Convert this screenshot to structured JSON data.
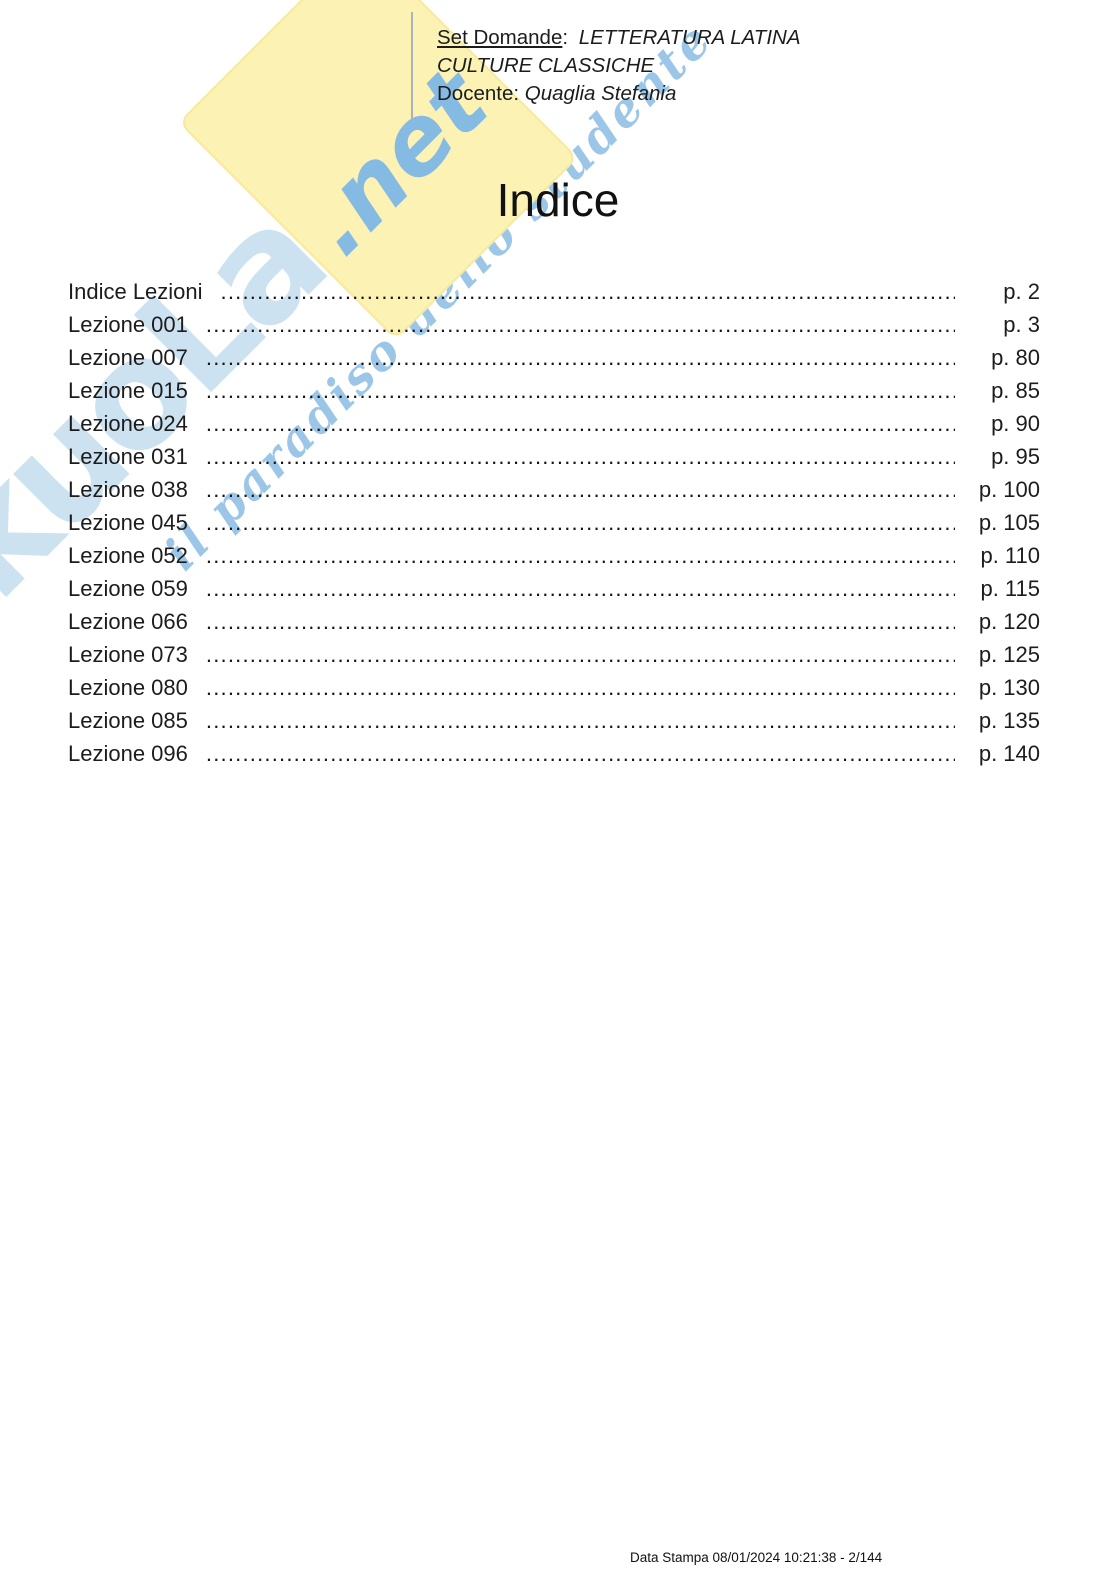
{
  "header": {
    "set_domande_label": "Set Domande",
    "separator": ":",
    "course_line1": "LETTERATURA LATINA",
    "course_line2": "CULTURE CLASSICHE",
    "docente_label": "Docente:",
    "docente_name": "Quaglia Stefania"
  },
  "title": "Indice",
  "toc": {
    "leader_char": ".",
    "entries": [
      {
        "label": "Indice Lezioni",
        "page": "p. 2"
      },
      {
        "label": "Lezione 001",
        "page": "p. 3"
      },
      {
        "label": "Lezione 007",
        "page": "p. 80"
      },
      {
        "label": "Lezione 015",
        "page": "p. 85"
      },
      {
        "label": "Lezione 024",
        "page": "p. 90"
      },
      {
        "label": "Lezione 031",
        "page": "p. 95"
      },
      {
        "label": "Lezione 038",
        "page": "p. 100"
      },
      {
        "label": "Lezione 045",
        "page": "p. 105"
      },
      {
        "label": "Lezione 052",
        "page": "p. 110"
      },
      {
        "label": "Lezione 059",
        "page": "p. 115"
      },
      {
        "label": "Lezione 066",
        "page": "p. 120"
      },
      {
        "label": "Lezione 073",
        "page": "p. 125"
      },
      {
        "label": "Lezione 080",
        "page": "p. 130"
      },
      {
        "label": "Lezione 085",
        "page": "p. 135"
      },
      {
        "label": "Lezione 096",
        "page": "p. 140"
      }
    ]
  },
  "watermark": {
    "brand": "skuoLa",
    "brand_suffix": ".net",
    "tagline": "il paradiso dello studente",
    "colors": {
      "brand_light_blue": "#cde2f1",
      "accent_blue": "#85bae3",
      "band_yellow": "#fbf2b4"
    }
  },
  "footer": {
    "print_info": "Data Stampa 08/01/2024 10:21:38 - 2/144"
  }
}
